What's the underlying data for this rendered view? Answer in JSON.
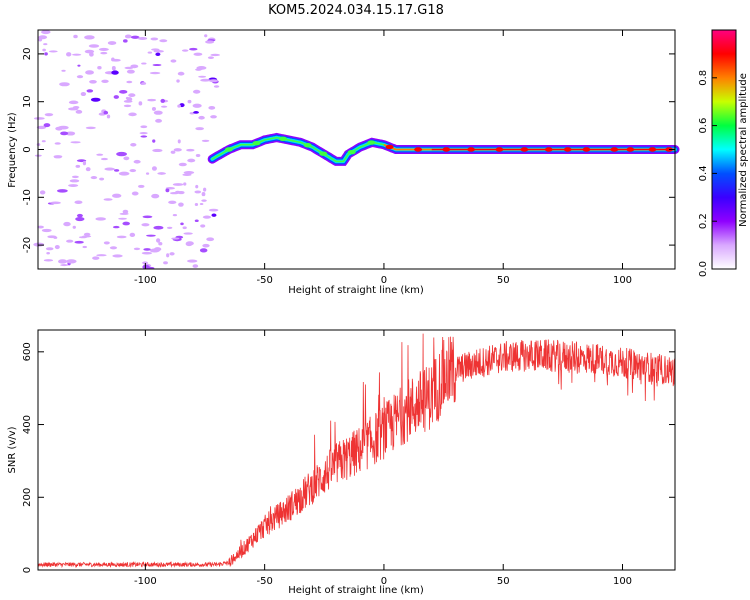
{
  "title": "KOM5.2024.034.15.17.G18",
  "chart_data": [
    {
      "type": "heatmap",
      "xlabel": "Height of straight line (km)",
      "ylabel": "Frequency (Hz)",
      "xlim": [
        -145,
        122
      ],
      "ylim": [
        -25,
        25
      ],
      "xticks": [
        "-100",
        "-50",
        "0",
        "50",
        "100"
      ],
      "xtick_values": [
        -100,
        -50,
        0,
        50,
        100
      ],
      "yticks": [
        "-20",
        "-10",
        "0",
        "10",
        "20"
      ],
      "ytick_values": [
        -20,
        -10,
        0,
        10,
        20
      ],
      "colorbar": {
        "label": "Normalized spectral amplitude",
        "range": [
          0,
          1
        ],
        "ticks": [
          "0.0",
          "0.2",
          "0.4",
          "0.6",
          "0.8"
        ],
        "tick_values": [
          0,
          0.2,
          0.4,
          0.6,
          0.8
        ],
        "colormap": [
          "#ffffff",
          "#d9a8ff",
          "#8f00ff",
          "#3a00ff",
          "#0050ff",
          "#00ffff",
          "#00ff40",
          "#c8ff00",
          "#ff8000",
          "#ff0000",
          "#ff0080"
        ]
      },
      "ridge": {
        "x": [
          -72,
          -65,
          -60,
          -55,
          -50,
          -45,
          -40,
          -35,
          -30,
          -25,
          -20,
          -17,
          -15,
          -10,
          -5,
          0,
          5,
          10,
          20,
          40,
          60,
          80,
          100,
          122
        ],
        "y": [
          -2,
          0,
          1,
          1,
          2,
          2.5,
          2,
          1.5,
          0.5,
          -1,
          -2.5,
          -2.5,
          -1,
          0.5,
          1.5,
          1,
          0,
          0,
          0,
          0,
          0,
          0,
          0,
          0
        ],
        "peak_start": 0,
        "peak_full": 20
      },
      "noise_region_x": [
        -145,
        -70
      ]
    },
    {
      "type": "line",
      "xlabel": "Height of straight line (km)",
      "ylabel": "SNR (v/v)",
      "xlim": [
        -145,
        122
      ],
      "ylim": [
        0,
        660
      ],
      "xticks": [
        "-100",
        "-50",
        "0",
        "50",
        "100"
      ],
      "xtick_values": [
        -100,
        -50,
        0,
        50,
        100
      ],
      "yticks": [
        "0",
        "200",
        "400",
        "600"
      ],
      "ytick_values": [
        0,
        200,
        400,
        600
      ],
      "line_color": "#ee3333",
      "envelope": {
        "x": [
          -145,
          -70,
          -65,
          -60,
          -50,
          -40,
          -30,
          -20,
          -10,
          0,
          10,
          20,
          25,
          30,
          40,
          50,
          60,
          70,
          80,
          90,
          100,
          110,
          122
        ],
        "y": [
          15,
          15,
          20,
          50,
          120,
          170,
          230,
          290,
          330,
          380,
          440,
          480,
          530,
          550,
          570,
          585,
          590,
          590,
          585,
          580,
          570,
          560,
          545
        ]
      }
    }
  ]
}
